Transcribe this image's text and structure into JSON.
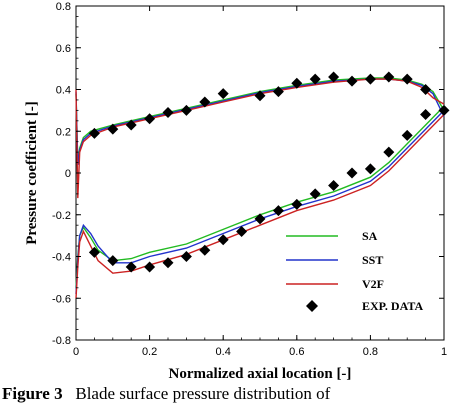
{
  "chart_data": {
    "type": "line",
    "title": "",
    "xlabel": "Normalized axial location [-]",
    "ylabel": "Pressure coefficient [-]",
    "xlim": [
      0,
      1
    ],
    "ylim": [
      -0.8,
      0.8
    ],
    "x_ticks": [
      0,
      0.2,
      0.4,
      0.6,
      0.8,
      1
    ],
    "x_tick_labels": [
      "0",
      "0.2",
      "0.4",
      "0.6",
      "0.8",
      "1"
    ],
    "y_ticks": [
      -0.8,
      -0.6,
      -0.4,
      -0.2,
      0,
      0.2,
      0.4,
      0.6,
      0.8
    ],
    "y_tick_labels": [
      "-0.8",
      "-0.6",
      "-0.4",
      "-0.2",
      "0",
      "0.2",
      "0.4",
      "0.6",
      "0.8"
    ],
    "grid": false,
    "legend_position": "bottom-right",
    "series": [
      {
        "name": "SA",
        "color": "#22bb22",
        "marker": "line",
        "upper": {
          "x": [
            0.0,
            0.005,
            0.01,
            0.02,
            0.04,
            0.1,
            0.2,
            0.3,
            0.4,
            0.5,
            0.6,
            0.7,
            0.8,
            0.85,
            0.9,
            0.94,
            0.97,
            1.0
          ],
          "y": [
            0.38,
            0.05,
            0.12,
            0.17,
            0.2,
            0.23,
            0.27,
            0.31,
            0.35,
            0.39,
            0.42,
            0.445,
            0.455,
            0.455,
            0.445,
            0.425,
            0.39,
            0.3
          ]
        },
        "lower": {
          "x": [
            0.0,
            0.005,
            0.01,
            0.02,
            0.04,
            0.06,
            0.1,
            0.15,
            0.2,
            0.3,
            0.4,
            0.5,
            0.6,
            0.7,
            0.8,
            0.85,
            0.9,
            0.95,
            1.0
          ],
          "y": [
            -0.55,
            -0.4,
            -0.3,
            -0.26,
            -0.31,
            -0.37,
            -0.42,
            -0.41,
            -0.38,
            -0.34,
            -0.27,
            -0.2,
            -0.14,
            -0.09,
            -0.02,
            0.05,
            0.14,
            0.23,
            0.32
          ]
        }
      },
      {
        "name": "SST",
        "color": "#2233cc",
        "marker": "line",
        "upper": {
          "x": [
            0.0,
            0.005,
            0.01,
            0.02,
            0.04,
            0.1,
            0.2,
            0.3,
            0.4,
            0.5,
            0.6,
            0.7,
            0.8,
            0.85,
            0.9,
            0.94,
            0.97,
            1.0
          ],
          "y": [
            0.39,
            0.04,
            0.11,
            0.16,
            0.19,
            0.225,
            0.265,
            0.305,
            0.345,
            0.385,
            0.415,
            0.44,
            0.45,
            0.45,
            0.44,
            0.42,
            0.38,
            0.27
          ]
        },
        "lower": {
          "x": [
            0.0,
            0.005,
            0.01,
            0.02,
            0.04,
            0.06,
            0.1,
            0.15,
            0.2,
            0.3,
            0.4,
            0.5,
            0.6,
            0.7,
            0.8,
            0.85,
            0.9,
            0.95,
            1.0
          ],
          "y": [
            -0.58,
            -0.42,
            -0.3,
            -0.25,
            -0.29,
            -0.35,
            -0.43,
            -0.43,
            -0.4,
            -0.36,
            -0.29,
            -0.22,
            -0.16,
            -0.11,
            -0.04,
            0.03,
            0.12,
            0.21,
            0.3
          ]
        }
      },
      {
        "name": "V2F",
        "color": "#cc2222",
        "marker": "line",
        "upper": {
          "x": [
            0.0,
            0.005,
            0.01,
            0.02,
            0.04,
            0.1,
            0.2,
            0.3,
            0.4,
            0.5,
            0.6,
            0.7,
            0.8,
            0.85,
            0.9,
            0.94,
            0.97,
            1.0
          ],
          "y": [
            0.4,
            -0.12,
            0.1,
            0.15,
            0.18,
            0.22,
            0.26,
            0.3,
            0.34,
            0.38,
            0.41,
            0.435,
            0.45,
            0.45,
            0.44,
            0.41,
            0.36,
            0.33
          ]
        },
        "lower": {
          "x": [
            0.0,
            0.005,
            0.01,
            0.02,
            0.04,
            0.06,
            0.1,
            0.15,
            0.2,
            0.3,
            0.4,
            0.5,
            0.6,
            0.7,
            0.8,
            0.85,
            0.9,
            0.95,
            1.0
          ],
          "y": [
            -0.6,
            -0.45,
            -0.33,
            -0.28,
            -0.35,
            -0.42,
            -0.48,
            -0.47,
            -0.44,
            -0.39,
            -0.32,
            -0.25,
            -0.18,
            -0.13,
            -0.06,
            0.01,
            0.1,
            0.19,
            0.28
          ]
        }
      },
      {
        "name": "EXP. DATA",
        "color": "#000000",
        "marker": "diamond",
        "x": [
          0.05,
          0.1,
          0.15,
          0.2,
          0.25,
          0.3,
          0.35,
          0.4,
          0.5,
          0.55,
          0.6,
          0.65,
          0.7,
          0.75,
          0.8,
          0.85,
          0.9,
          0.95,
          0.05,
          0.1,
          0.15,
          0.2,
          0.25,
          0.3,
          0.35,
          0.4,
          0.45,
          0.5,
          0.55,
          0.6,
          0.65,
          0.7,
          0.75,
          0.8,
          0.85,
          0.9,
          0.95,
          1.0
        ],
        "y": [
          0.19,
          0.21,
          0.23,
          0.26,
          0.29,
          0.3,
          0.34,
          0.38,
          0.37,
          0.39,
          0.43,
          0.45,
          0.46,
          0.44,
          0.45,
          0.46,
          0.45,
          0.4,
          -0.38,
          -0.42,
          -0.45,
          -0.45,
          -0.43,
          -0.4,
          -0.37,
          -0.32,
          -0.28,
          -0.22,
          -0.18,
          -0.15,
          -0.1,
          -0.06,
          0.0,
          0.02,
          0.1,
          0.18,
          0.28,
          0.3
        ]
      }
    ]
  },
  "caption": {
    "label": "Figure 3",
    "text": "Blade surface pressure distribution of"
  }
}
